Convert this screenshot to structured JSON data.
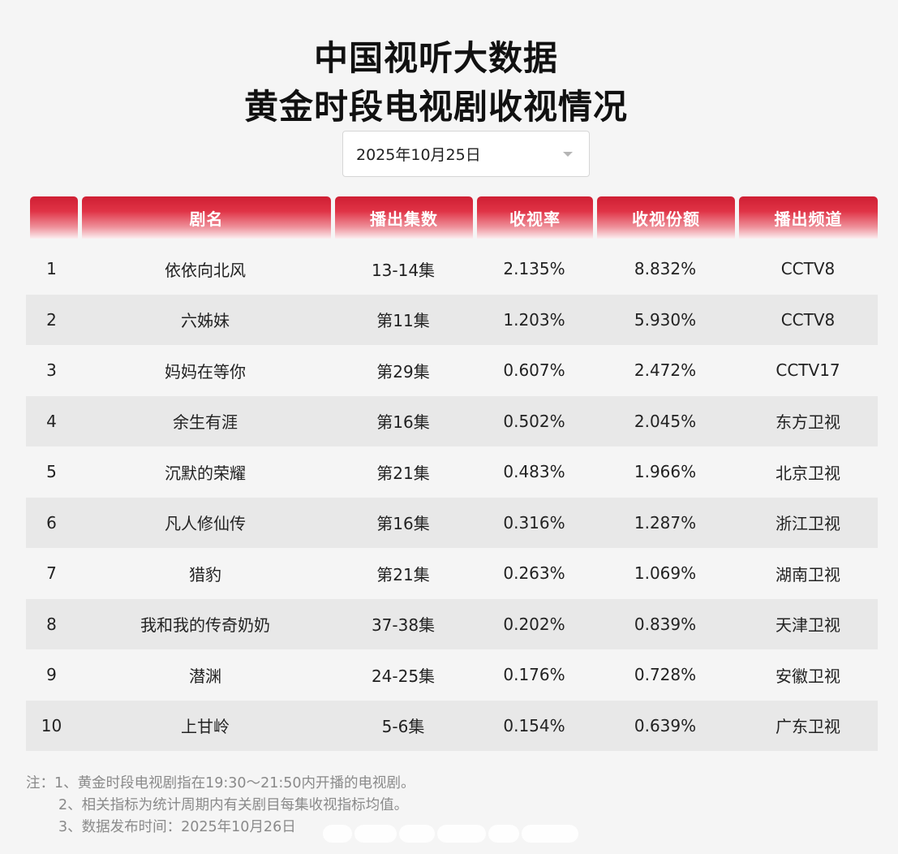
{
  "title_line1": "中国视听大数据",
  "title_line2": "黄金时段电视剧收视情况",
  "date_select": {
    "value": "2025年10月25日"
  },
  "columns": [
    "",
    "剧名",
    "播出集数",
    "收视率",
    "收视份额",
    "播出频道"
  ],
  "rows": [
    {
      "rank": "1",
      "name": "依依向北风",
      "episodes": "13-14集",
      "rating": "2.135%",
      "share": "8.832%",
      "channel": "CCTV8"
    },
    {
      "rank": "2",
      "name": "六姊妹",
      "episodes": "第11集",
      "rating": "1.203%",
      "share": "5.930%",
      "channel": "CCTV8"
    },
    {
      "rank": "3",
      "name": "妈妈在等你",
      "episodes": "第29集",
      "rating": "0.607%",
      "share": "2.472%",
      "channel": "CCTV17"
    },
    {
      "rank": "4",
      "name": "余生有涯",
      "episodes": "第16集",
      "rating": "0.502%",
      "share": "2.045%",
      "channel": "东方卫视"
    },
    {
      "rank": "5",
      "name": "沉默的荣耀",
      "episodes": "第21集",
      "rating": "0.483%",
      "share": "1.966%",
      "channel": "北京卫视"
    },
    {
      "rank": "6",
      "name": "凡人修仙传",
      "episodes": "第16集",
      "rating": "0.316%",
      "share": "1.287%",
      "channel": "浙江卫视"
    },
    {
      "rank": "7",
      "name": "猎豹",
      "episodes": "第21集",
      "rating": "0.263%",
      "share": "1.069%",
      "channel": "湖南卫视"
    },
    {
      "rank": "8",
      "name": "我和我的传奇奶奶",
      "episodes": "37-38集",
      "rating": "0.202%",
      "share": "0.839%",
      "channel": "天津卫视"
    },
    {
      "rank": "9",
      "name": "潜渊",
      "episodes": "24-25集",
      "rating": "0.176%",
      "share": "0.728%",
      "channel": "安徽卫视"
    },
    {
      "rank": "10",
      "name": "上甘岭",
      "episodes": "5-6集",
      "rating": "0.154%",
      "share": "0.639%",
      "channel": "广东卫视"
    }
  ],
  "notes": [
    "注：1、黄金时段电视剧指在19:30～21:50内开播的电视剧。",
    "2、相关指标为统计周期内有关剧目每集收视指标均值。",
    "3、数据发布时间：2025年10月26日"
  ],
  "colors": {
    "header_red": "#cf1f33",
    "alt_row": "#e8e8e8",
    "background": "#f5f5f5"
  }
}
